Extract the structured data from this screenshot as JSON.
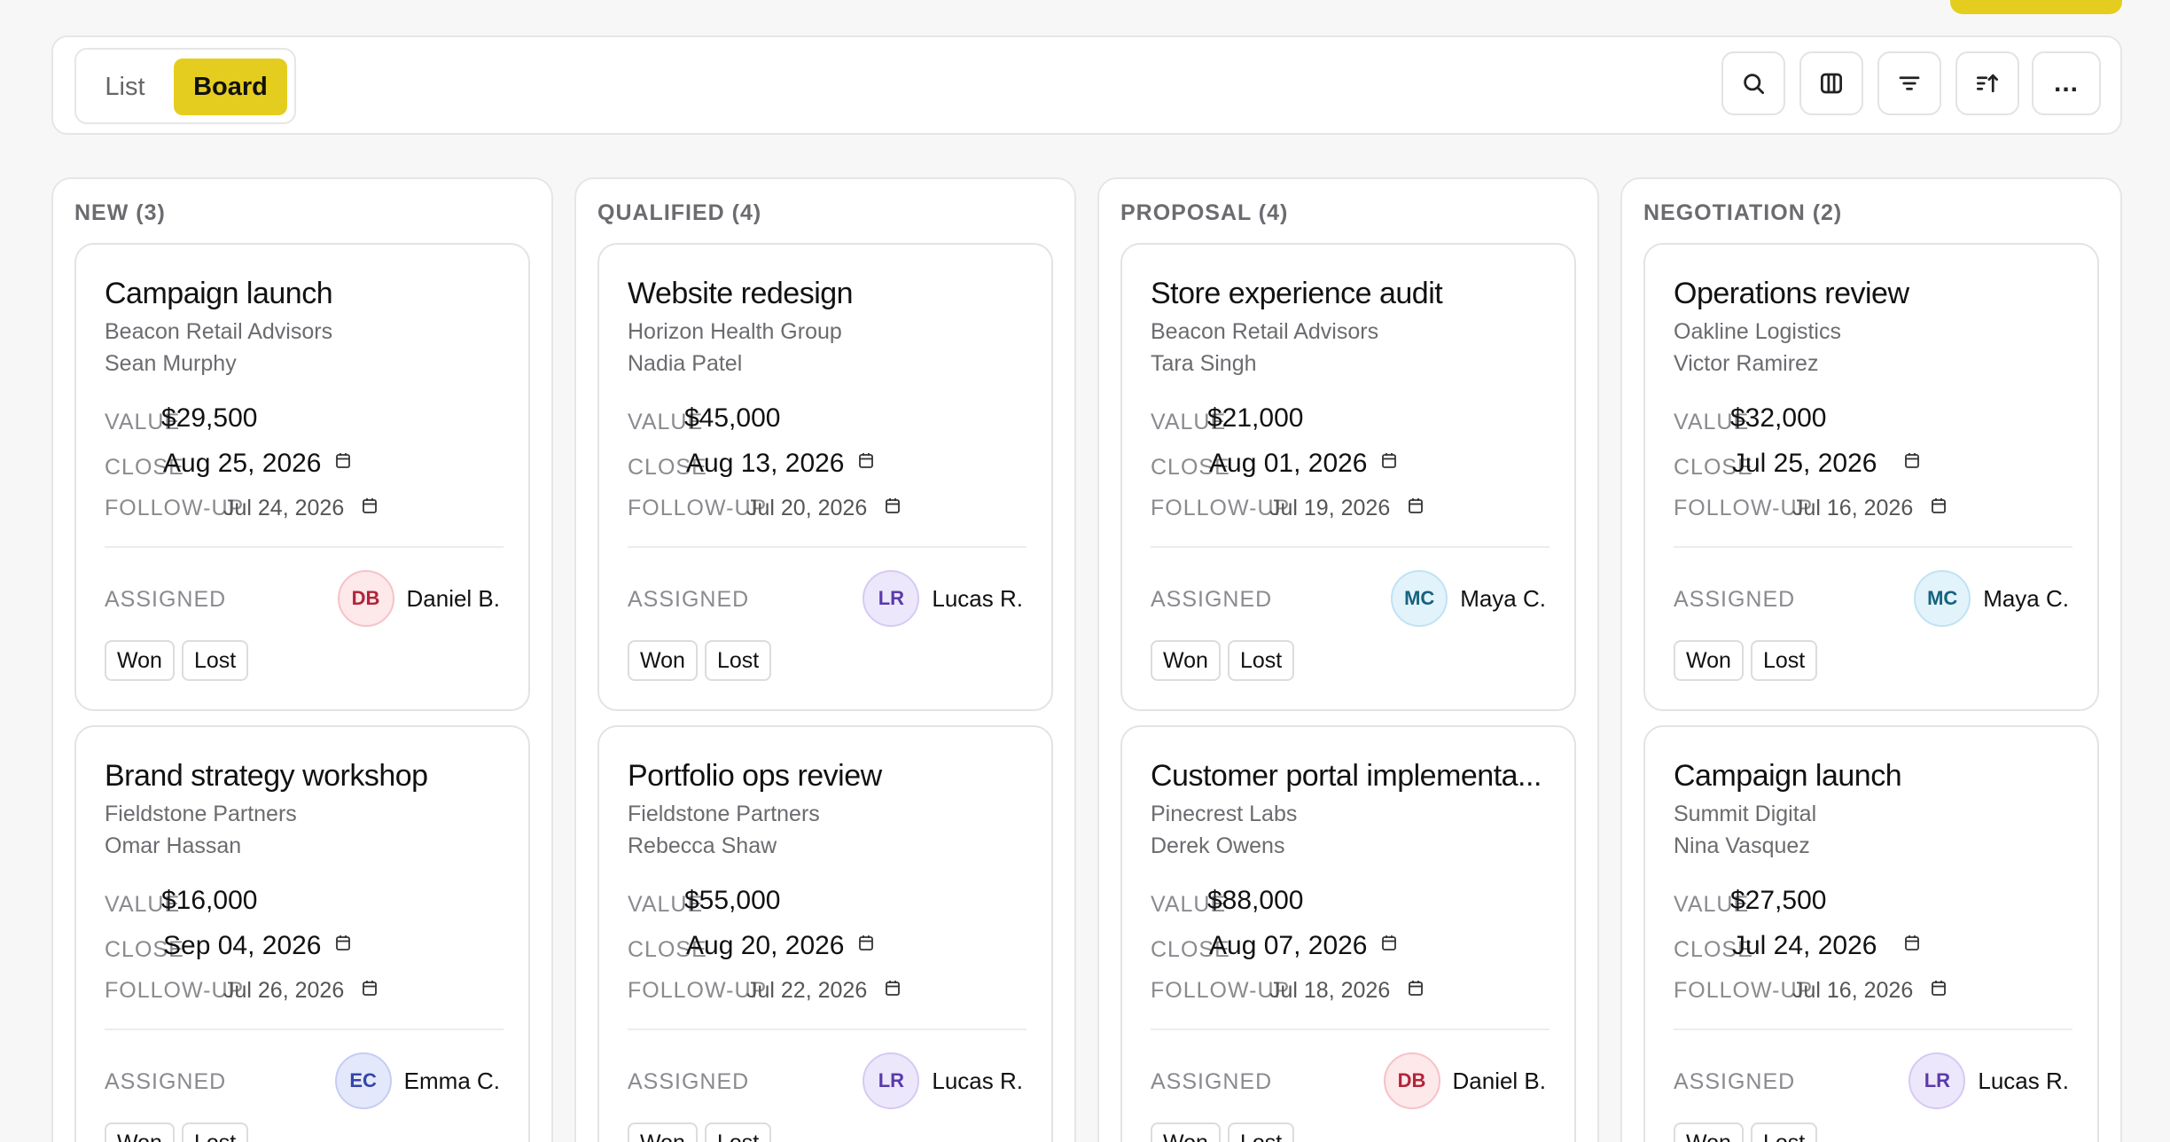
{
  "toolbar": {
    "view_list_label": "List",
    "view_board_label": "Board",
    "more_label": "...",
    "icons": [
      "search-icon",
      "columns-icon",
      "filter-icon",
      "sort-icon"
    ],
    "accent_color": "#e5cd1f"
  },
  "field_labels": {
    "value": "VALUE",
    "close": "CLOSE",
    "followup": "FOLLOW-UP",
    "assigned": "ASSIGNED",
    "won": "Won",
    "lost": "Lost"
  },
  "columns": [
    {
      "title": "NEW (3)",
      "cards": [
        {
          "title": "Campaign launch",
          "company": "Beacon Retail Advisors",
          "contact": "Sean Murphy",
          "value": "$29,500",
          "close": "Aug 25, 2026",
          "followup": "Jul 24, 2026",
          "initials": "DB",
          "assignee": "Daniel B.",
          "avatar_bg": "#fde8ea",
          "avatar_border": "#f6c2c8",
          "avatar_fg": "#b3243a"
        },
        {
          "title": "Brand strategy workshop",
          "company": "Fieldstone Partners",
          "contact": "Omar Hassan",
          "value": "$16,000",
          "close": "Sep 04, 2026",
          "followup": "Jul 26, 2026",
          "initials": "EC",
          "assignee": "Emma C.",
          "avatar_bg": "#e4e8fb",
          "avatar_border": "#c5cdf4",
          "avatar_fg": "#3346a8"
        }
      ]
    },
    {
      "title": "QUALIFIED (4)",
      "cards": [
        {
          "title": "Website redesign",
          "company": "Horizon Health Group",
          "contact": "Nadia Patel",
          "value": "$45,000",
          "close": "Aug 13, 2026",
          "followup": "Jul 20, 2026",
          "initials": "LR",
          "assignee": "Lucas R.",
          "avatar_bg": "#ede7fb",
          "avatar_border": "#d6caf4",
          "avatar_fg": "#5b3aa8"
        },
        {
          "title": "Portfolio ops review",
          "company": "Fieldstone Partners",
          "contact": "Rebecca Shaw",
          "value": "$55,000",
          "close": "Aug 20, 2026",
          "followup": "Jul 22, 2026",
          "initials": "LR",
          "assignee": "Lucas R.",
          "avatar_bg": "#ede7fb",
          "avatar_border": "#d6caf4",
          "avatar_fg": "#5b3aa8"
        }
      ]
    },
    {
      "title": "PROPOSAL (4)",
      "cards": [
        {
          "title": "Store experience audit",
          "company": "Beacon Retail Advisors",
          "contact": "Tara Singh",
          "value": "$21,000",
          "close": "Aug 01, 2026",
          "followup": "Jul 19, 2026",
          "initials": "MC",
          "assignee": "Maya C.",
          "avatar_bg": "#e2f3fb",
          "avatar_border": "#bfe3f3",
          "avatar_fg": "#16627e"
        },
        {
          "title": "Customer portal implementa...",
          "company": "Pinecrest Labs",
          "contact": "Derek Owens",
          "value": "$88,000",
          "close": "Aug 07, 2026",
          "followup": "Jul 18, 2026",
          "initials": "DB",
          "assignee": "Daniel B.",
          "avatar_bg": "#fde8ea",
          "avatar_border": "#f6c2c8",
          "avatar_fg": "#b3243a"
        }
      ]
    },
    {
      "title": "NEGOTIATION (2)",
      "cards": [
        {
          "title": "Operations review",
          "company": "Oakline Logistics",
          "contact": "Victor Ramirez",
          "value": "$32,000",
          "close": "Jul 25, 2026",
          "followup": "Jul 16, 2026",
          "initials": "MC",
          "assignee": "Maya C.",
          "avatar_bg": "#e2f3fb",
          "avatar_border": "#bfe3f3",
          "avatar_fg": "#16627e"
        },
        {
          "title": "Campaign launch",
          "company": "Summit Digital",
          "contact": "Nina Vasquez",
          "value": "$27,500",
          "close": "Jul 24, 2026",
          "followup": "Jul 16, 2026",
          "initials": "LR",
          "assignee": "Lucas R.",
          "avatar_bg": "#ede7fb",
          "avatar_border": "#d6caf4",
          "avatar_fg": "#5b3aa8"
        }
      ]
    }
  ]
}
